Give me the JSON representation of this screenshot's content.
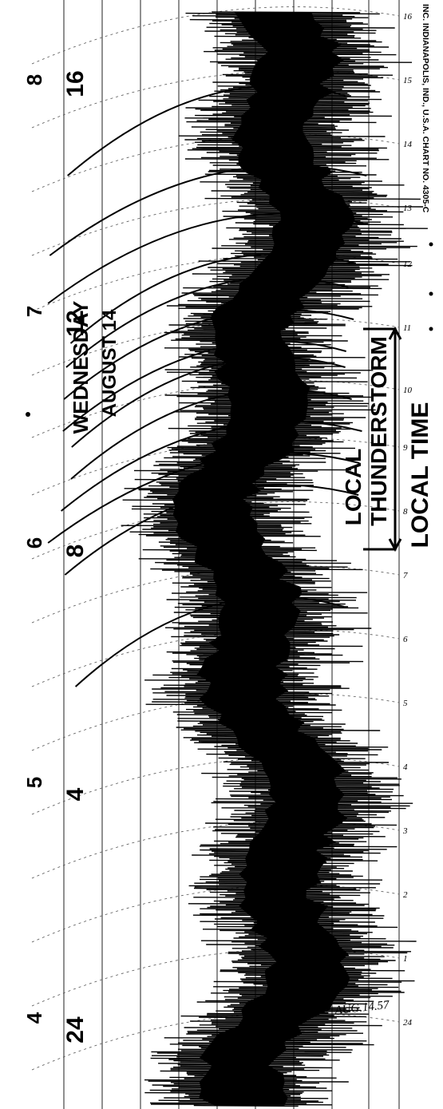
{
  "left_scale": [
    "8",
    "7",
    "6",
    "5",
    "4"
  ],
  "hour_labels": [
    "16",
    "12",
    "8",
    "4",
    "24"
  ],
  "day_label": "WEDNESDAY",
  "date_label": "AUGUST 14",
  "annotation_local_thunderstorm": [
    "LOCAL",
    "THUNDERSTORM"
  ],
  "annotation_local_time": "LOCAL TIME",
  "chart_info": "INC. INDIANAPOLIS, IND., U.S.A.  CHART NO. 4305-C",
  "handwritten_note": "AUG.14.57",
  "time_ticks": [
    "16",
    "15",
    "14",
    "13",
    "12",
    "11",
    "10",
    "9",
    "8",
    "7",
    "6",
    "5",
    "4",
    "3",
    "2",
    "1",
    "24"
  ]
}
